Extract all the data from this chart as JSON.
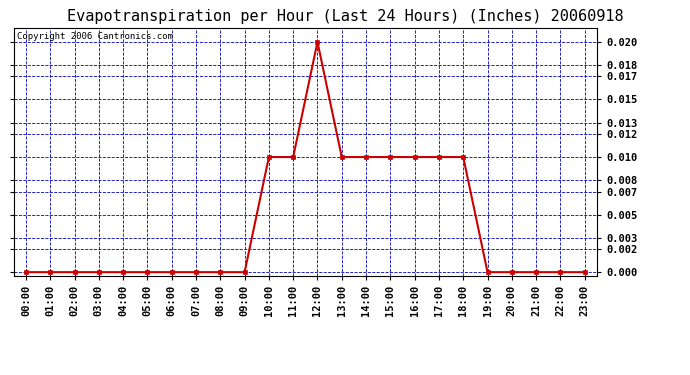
{
  "title": "Evapotranspiration per Hour (Last 24 Hours) (Inches) 20060918",
  "copyright": "Copyright 2006 Cantronics.com",
  "hours": [
    0,
    1,
    2,
    3,
    4,
    5,
    6,
    7,
    8,
    9,
    10,
    11,
    12,
    13,
    14,
    15,
    16,
    17,
    18,
    19,
    20,
    21,
    22,
    23
  ],
  "values": [
    0.0,
    0.0,
    0.0,
    0.0,
    0.0,
    0.0,
    0.0,
    0.0,
    0.0,
    0.0,
    0.01,
    0.01,
    0.02,
    0.01,
    0.01,
    0.01,
    0.01,
    0.01,
    0.01,
    0.0,
    0.0,
    0.0,
    0.0,
    0.0
  ],
  "yticks": [
    0.0,
    0.002,
    0.003,
    0.005,
    0.007,
    0.008,
    0.01,
    0.012,
    0.013,
    0.015,
    0.017,
    0.018,
    0.02
  ],
  "line_color": "#cc0000",
  "marker_color": "#cc0000",
  "grid_color": "#0000bb",
  "background_color": "#ffffff",
  "plot_bg_color": "#ffffff",
  "title_fontsize": 11,
  "tick_label_fontsize": 7.5,
  "copyright_fontsize": 6.5,
  "ylim": [
    -0.0003,
    0.0212
  ],
  "xlim": [
    -0.5,
    23.5
  ]
}
